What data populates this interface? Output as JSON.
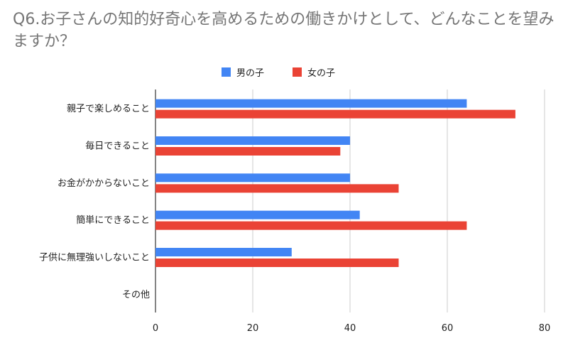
{
  "title": "Q6.お子さんの知的好奇心を高めるための働きかけとして、どんなことを望みますか？",
  "colors": {
    "boys": "#4285f4",
    "girls": "#ea4335",
    "grid": "#cccccc",
    "axis": "#333333"
  },
  "chart_data": {
    "type": "bar",
    "orientation": "horizontal",
    "categories": [
      "親子で楽しめること",
      "毎日できること",
      "お金がかからないこと",
      "簡単にできること",
      "子供に無理強いしないこと",
      "その他"
    ],
    "series": [
      {
        "name": "男の子",
        "values": [
          64,
          40,
          40,
          42,
          28,
          0
        ]
      },
      {
        "name": "女の子",
        "values": [
          74,
          38,
          50,
          64,
          50,
          0
        ]
      }
    ],
    "xlim": [
      0,
      80
    ],
    "xticks": [
      0,
      20,
      40,
      60,
      80
    ],
    "grid": true,
    "legend": "top-center"
  }
}
